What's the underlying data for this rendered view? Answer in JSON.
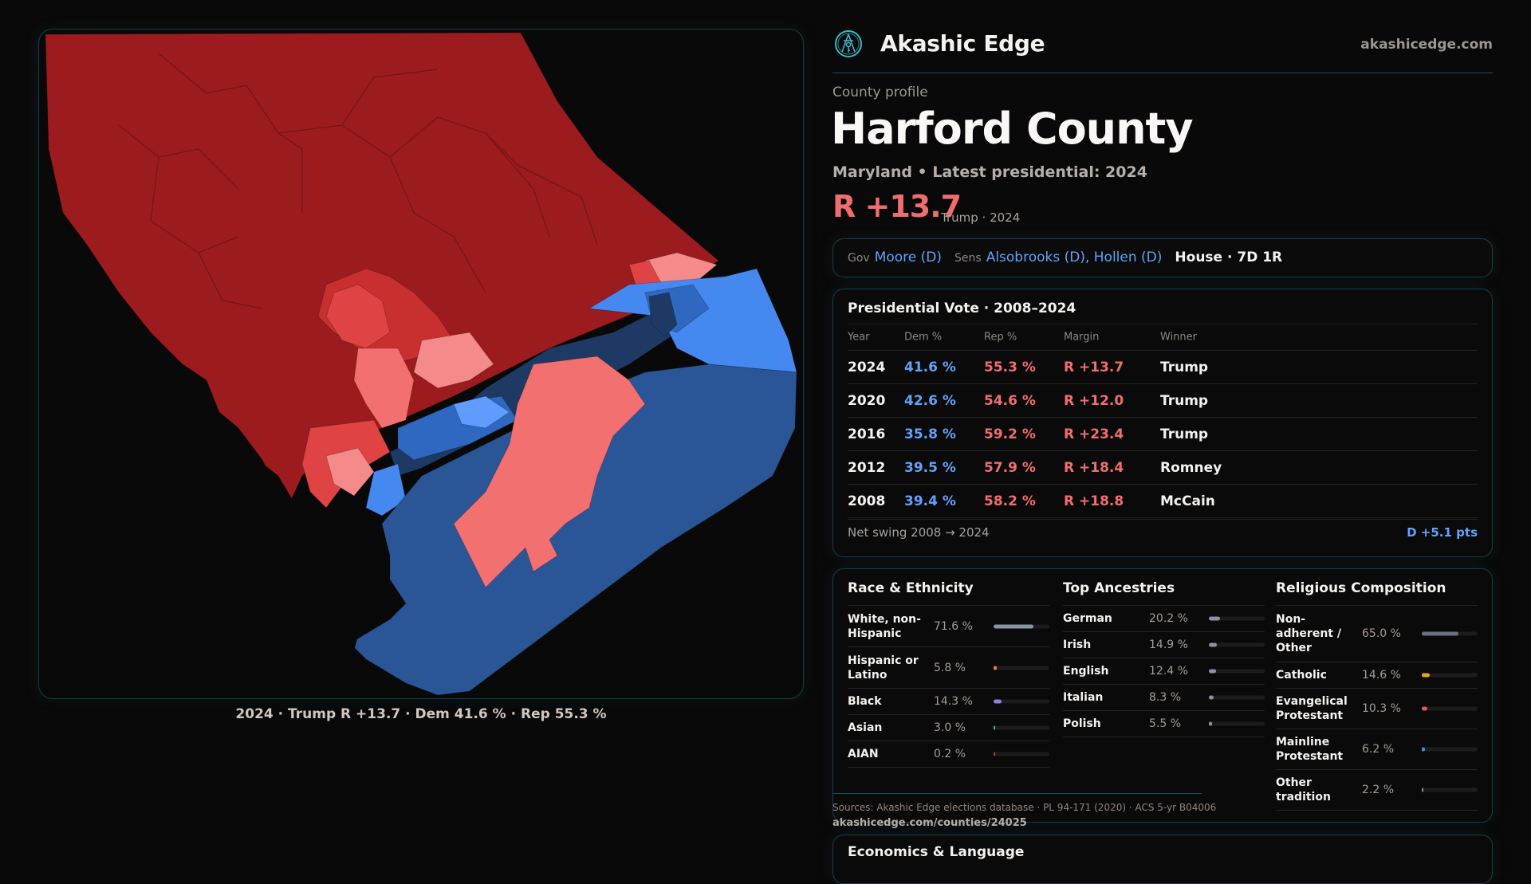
{
  "map": {
    "caption": "2024 · Trump R +13.7 · Dem 41.6 % · Rep 55.3 %",
    "colors": {
      "safe_r": "#9b1b1f",
      "likely_r": "#c8302f",
      "lean_r": "#e04343",
      "tilt_r": "#f37070",
      "soft_r": "#f58a8a",
      "safe_d": "#1e3a64",
      "likely_d": "#2a5698",
      "lean_d": "#2f68c0",
      "tilt_d": "#4589f0",
      "soft_d": "#5e9dff"
    }
  },
  "brand": {
    "name": "Akashic Edge",
    "url": "akashicedge.com",
    "logo_icon": "compass-key-emblem-icon",
    "accent": "#3ab8c8"
  },
  "profile": {
    "kicker": "County profile",
    "title": "Harford County",
    "subtitle": "Maryland • Latest presidential: 2024",
    "margin": "R +13.7",
    "margin_note": "Trump · 2024"
  },
  "officials": {
    "gov_label": "Gov",
    "gov": "Moore (D)",
    "sens_label": "Sens",
    "sens": "Alsobrooks (D), Hollen (D)",
    "house": "House · 7D 1R"
  },
  "presidential": {
    "title": "Presidential Vote · 2008–2024",
    "headers": [
      "Year",
      "Dem %",
      "Rep %",
      "Margin",
      "Winner"
    ],
    "rows": [
      {
        "year": "2024",
        "dem": "41.6 %",
        "rep": "55.3 %",
        "margin": "R +13.7",
        "winner": "Trump"
      },
      {
        "year": "2020",
        "dem": "42.6 %",
        "rep": "54.6 %",
        "margin": "R +12.0",
        "winner": "Trump"
      },
      {
        "year": "2016",
        "dem": "35.8 %",
        "rep": "59.2 %",
        "margin": "R +23.4",
        "winner": "Trump"
      },
      {
        "year": "2012",
        "dem": "39.5 %",
        "rep": "57.9 %",
        "margin": "R +18.4",
        "winner": "Romney"
      },
      {
        "year": "2008",
        "dem": "39.4 %",
        "rep": "58.2 %",
        "margin": "R +18.8",
        "winner": "McCain"
      }
    ],
    "swing_label": "Net swing 2008 → 2024",
    "swing_value": "D +5.1 pts"
  },
  "demographics": {
    "race": {
      "title": "Race & Ethnicity",
      "items": [
        {
          "label": "White, non-Hispanic",
          "pct": "71.6 %",
          "value": 71.6,
          "color": "#8a93a6"
        },
        {
          "label": "Hispanic or Latino",
          "pct": "5.8 %",
          "value": 5.8,
          "color": "#e08a1e"
        },
        {
          "label": "Black",
          "pct": "14.3 %",
          "value": 14.3,
          "color": "#9a7ae6"
        },
        {
          "label": "Asian",
          "pct": "3.0 %",
          "value": 3.0,
          "color": "#2fc49a"
        },
        {
          "label": "AIAN",
          "pct": "0.2 %",
          "value": 0.2,
          "color": "#c0392b"
        }
      ]
    },
    "ancestry": {
      "title": "Top Ancestries",
      "items": [
        {
          "label": "German",
          "pct": "20.2 %",
          "value": 20.2,
          "color": "#8a93a6"
        },
        {
          "label": "Irish",
          "pct": "14.9 %",
          "value": 14.9,
          "color": "#8a93a6"
        },
        {
          "label": "English",
          "pct": "12.4 %",
          "value": 12.4,
          "color": "#8a93a6"
        },
        {
          "label": "Italian",
          "pct": "8.3 %",
          "value": 8.3,
          "color": "#8a93a6"
        },
        {
          "label": "Polish",
          "pct": "5.5 %",
          "value": 5.5,
          "color": "#8a93a6"
        }
      ]
    },
    "religion": {
      "title": "Religious Composition",
      "items": [
        {
          "label": "Non-adherent / Other",
          "pct": "65.0 %",
          "value": 65.0,
          "color": "#6b6f7a"
        },
        {
          "label": "Catholic",
          "pct": "14.6 %",
          "value": 14.6,
          "color": "#e0a820"
        },
        {
          "label": "Evangelical Protestant",
          "pct": "10.3 %",
          "value": 10.3,
          "color": "#e05a5a"
        },
        {
          "label": "Mainline Protestant",
          "pct": "6.2 %",
          "value": 6.2,
          "color": "#4a8ae8"
        },
        {
          "label": "Other tradition",
          "pct": "2.2 %",
          "value": 2.2,
          "color": "#8a8f99"
        }
      ]
    }
  },
  "footer": {
    "sources": "Sources: Akashic Edge elections database · PL 94-171 (2020) · ACS 5-yr B04006",
    "url": "akashicedge.com/counties/24025"
  },
  "economics": {
    "title": "Economics & Language"
  }
}
